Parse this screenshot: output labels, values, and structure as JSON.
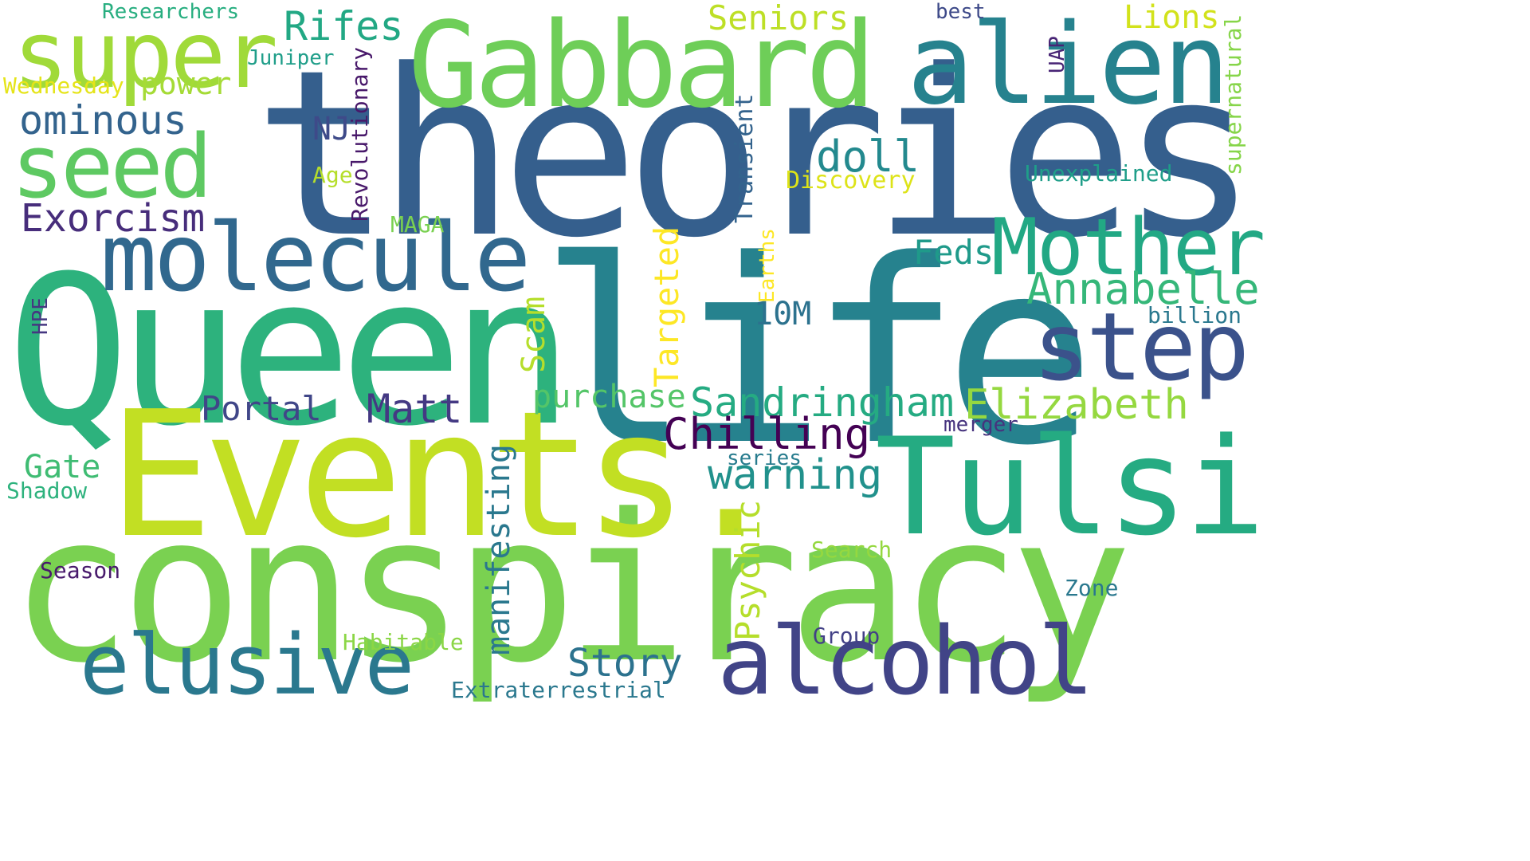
{
  "colors": {
    "dark_purple": "#440154",
    "indigo": "#3e4a89",
    "blue": "#355f8d",
    "steel_teal": "#31688e",
    "teal": "#26828e",
    "teal_green": "#1f9e89",
    "green": "#35b779",
    "light_green": "#6ece58",
    "lime": "#b5de2b",
    "yellow_green": "#c7e020",
    "yellow": "#fde725"
  },
  "words": [
    {
      "text": "theories",
      "color": "#355f8d"
    },
    {
      "text": "life",
      "color": "#26828e"
    },
    {
      "text": "conspiracy",
      "color": "#7ad151"
    },
    {
      "text": "Queen",
      "color": "#2db27d"
    },
    {
      "text": "Events.",
      "color": "#c2df23"
    },
    {
      "text": "Tulsi",
      "color": "#25ab82"
    },
    {
      "text": "Gabbard",
      "color": "#6ece58"
    },
    {
      "text": "alien",
      "color": "#26828e"
    },
    {
      "text": "super",
      "color": "#a0da39"
    },
    {
      "text": "molecule",
      "color": "#31688e"
    },
    {
      "text": "seed",
      "color": "#5ec962"
    },
    {
      "text": "Mother",
      "color": "#22a884"
    },
    {
      "text": "step",
      "color": "#3b528b"
    },
    {
      "text": "elusive",
      "color": "#2a788e"
    },
    {
      "text": "alcohol",
      "color": "#414487"
    },
    {
      "text": "Annabelle",
      "color": "#35b779"
    },
    {
      "text": "Sandringham",
      "color": "#25ab82"
    },
    {
      "text": "Elizabeth",
      "color": "#95d840"
    },
    {
      "text": "Exorcism",
      "color": "#472d7b"
    },
    {
      "text": "ominous",
      "color": "#33638d"
    },
    {
      "text": "Matt",
      "color": "#443983"
    },
    {
      "text": "Chilling",
      "color": "#440154"
    },
    {
      "text": "warning",
      "color": "#21918c"
    },
    {
      "text": "doll",
      "color": "#23898e"
    },
    {
      "text": "Story",
      "color": "#2c728e"
    },
    {
      "text": "Portal",
      "color": "#404688"
    },
    {
      "text": "Rifes",
      "color": "#22a884"
    },
    {
      "text": "Seniors",
      "color": "#bddf26"
    },
    {
      "text": "Lions",
      "color": "#d2e21b"
    },
    {
      "text": "power",
      "color": "#a5db36"
    },
    {
      "text": "Feds",
      "color": "#1f9a8a"
    },
    {
      "text": "purchase",
      "color": "#54c568"
    },
    {
      "text": "Gate",
      "color": "#3fbc73"
    },
    {
      "text": "10M",
      "color": "#2c728e"
    },
    {
      "text": "NJ",
      "color": "#3e4a89"
    },
    {
      "text": "Researchers",
      "color": "#28ae80"
    },
    {
      "text": "Juniper",
      "color": "#1f9e89"
    },
    {
      "text": "Wednesday",
      "color": "#e5e419"
    },
    {
      "text": "best",
      "color": "#3e4a89"
    },
    {
      "text": "Unexplained",
      "color": "#1f9e89"
    },
    {
      "text": "Discovery",
      "color": "#dde318"
    },
    {
      "text": "Age",
      "color": "#b5de2b"
    },
    {
      "text": "MAGA",
      "color": "#7ad151"
    },
    {
      "text": "billion",
      "color": "#2a788e"
    },
    {
      "text": "merger",
      "color": "#46337e"
    },
    {
      "text": "series",
      "color": "#287c8e"
    },
    {
      "text": "Search",
      "color": "#95d840"
    },
    {
      "text": "Zone",
      "color": "#2a788e"
    },
    {
      "text": "Group",
      "color": "#424086"
    },
    {
      "text": "Habitable",
      "color": "#8bd646"
    },
    {
      "text": "Extraterrestrial",
      "color": "#2a788e"
    },
    {
      "text": "Season",
      "color": "#481a6c"
    },
    {
      "text": "Shadow",
      "color": "#2db27d"
    },
    {
      "text": "Revolutionary",
      "color": "#48186a"
    },
    {
      "text": "Transient",
      "color": "#33638d"
    },
    {
      "text": "Targeted",
      "color": "#fde725"
    },
    {
      "text": "Scam",
      "color": "#b5de2b"
    },
    {
      "text": "manifesting",
      "color": "#2a788e"
    },
    {
      "text": "Psychic",
      "color": "#b5de2b"
    },
    {
      "text": "Earths",
      "color": "#fde725"
    },
    {
      "text": "UAP",
      "color": "#482475"
    },
    {
      "text": "supernatural",
      "color": "#86d549"
    },
    {
      "text": "HPE",
      "color": "#453781"
    }
  ]
}
